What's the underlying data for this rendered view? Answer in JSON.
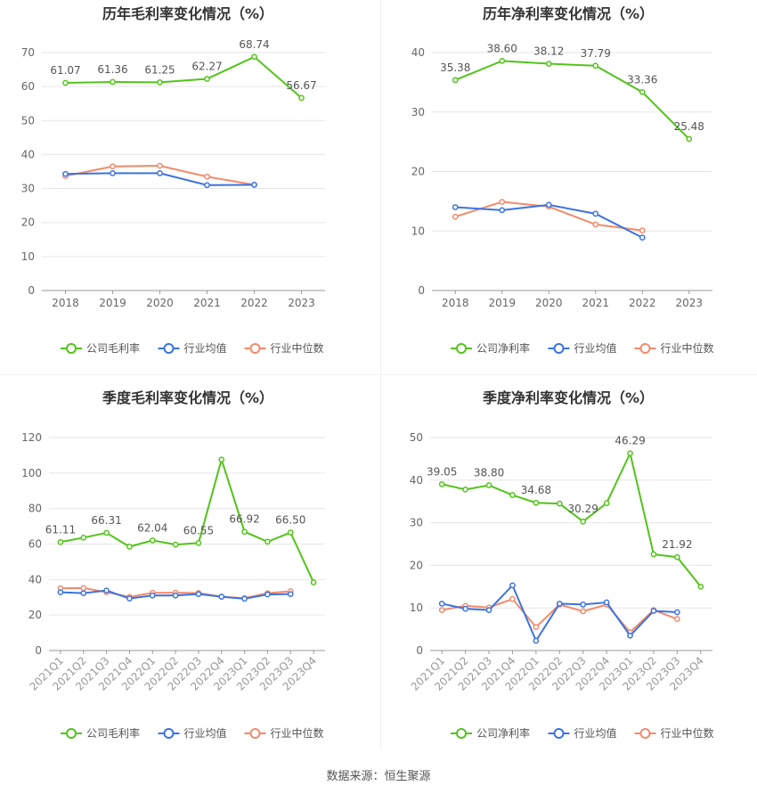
{
  "colors": {
    "company": "#52c41a",
    "industry_avg": "#3b73e0",
    "industry_median": "#f28b6b",
    "grid": "#e6e6e6",
    "axis": "#999999"
  },
  "source_label": "数据来源：恒生聚源",
  "chart_data": [
    {
      "type": "line",
      "title": "历年毛利率变化情况（%）",
      "categories": [
        "2018",
        "2019",
        "2020",
        "2021",
        "2022",
        "2023"
      ],
      "ylim": [
        0,
        70
      ],
      "yticks": [
        0,
        10,
        20,
        30,
        40,
        50,
        60,
        70
      ],
      "legend_position": "bottom",
      "series": [
        {
          "name": "公司毛利率",
          "values": [
            61.07,
            61.36,
            61.25,
            62.27,
            68.74,
            56.67
          ],
          "labels": [
            "61.07",
            "61.36",
            "61.25",
            "62.27",
            "68.74",
            "56.67"
          ]
        },
        {
          "name": "行业均值",
          "values": [
            34.3,
            34.5,
            34.5,
            31.0,
            31.1,
            null
          ]
        },
        {
          "name": "行业中位数",
          "values": [
            33.7,
            36.5,
            36.7,
            33.5,
            31.1,
            null
          ]
        }
      ]
    },
    {
      "type": "line",
      "title": "历年净利率变化情况（%）",
      "categories": [
        "2018",
        "2019",
        "2020",
        "2021",
        "2022",
        "2023"
      ],
      "ylim": [
        0,
        40
      ],
      "yticks": [
        0,
        10,
        20,
        30,
        40
      ],
      "legend_position": "bottom",
      "series": [
        {
          "name": "公司净利率",
          "values": [
            35.38,
            38.6,
            38.12,
            37.79,
            33.36,
            25.48
          ],
          "labels": [
            "35.38",
            "38.60",
            "38.12",
            "37.79",
            "33.36",
            "25.48"
          ]
        },
        {
          "name": "行业均值",
          "values": [
            14.0,
            13.5,
            14.4,
            12.9,
            8.9,
            null
          ]
        },
        {
          "name": "行业中位数",
          "values": [
            12.4,
            14.9,
            14.1,
            11.1,
            10.1,
            null
          ]
        }
      ]
    },
    {
      "type": "line",
      "title": "季度毛利率变化情况（%）",
      "categories": [
        "2021Q1",
        "2021Q2",
        "2021Q3",
        "2021Q4",
        "2022Q1",
        "2022Q2",
        "2022Q3",
        "2022Q4",
        "2023Q1",
        "2023Q2",
        "2023Q3",
        "2023Q4"
      ],
      "ylim": [
        0,
        120
      ],
      "yticks": [
        0,
        20,
        40,
        60,
        80,
        100,
        120
      ],
      "legend_position": "bottom",
      "series": [
        {
          "name": "公司毛利率",
          "values": [
            61.11,
            63.6,
            66.31,
            58.5,
            62.04,
            59.7,
            60.55,
            107.6,
            66.92,
            61.3,
            66.5,
            38.4
          ],
          "labels": [
            "61.11",
            "",
            "66.31",
            "",
            "62.04",
            "",
            "60.55",
            "",
            "66.92",
            "",
            "66.50",
            ""
          ]
        },
        {
          "name": "行业均值",
          "values": [
            32.8,
            32.3,
            33.8,
            29.3,
            31.0,
            31.0,
            31.8,
            30.3,
            29.2,
            31.6,
            31.8,
            null
          ]
        },
        {
          "name": "行业中位数",
          "values": [
            35.1,
            35.2,
            32.9,
            30.2,
            32.5,
            32.6,
            32.4,
            30.3,
            29.5,
            32.3,
            33.4,
            null
          ]
        }
      ]
    },
    {
      "type": "line",
      "title": "季度净利率变化情况（%）",
      "categories": [
        "2021Q1",
        "2021Q2",
        "2021Q3",
        "2021Q4",
        "2022Q1",
        "2022Q2",
        "2022Q3",
        "2022Q4",
        "2023Q1",
        "2023Q2",
        "2023Q3",
        "2023Q4"
      ],
      "ylim": [
        0,
        50
      ],
      "yticks": [
        0,
        10,
        20,
        30,
        40,
        50
      ],
      "legend_position": "bottom",
      "series": [
        {
          "name": "公司净利率",
          "values": [
            39.05,
            37.8,
            38.8,
            36.5,
            34.68,
            34.5,
            30.29,
            34.6,
            46.29,
            22.6,
            21.92,
            15.0
          ],
          "labels": [
            "39.05",
            "",
            "38.80",
            "",
            "34.68",
            "",
            "30.29",
            "",
            "46.29",
            "",
            "21.92",
            ""
          ]
        },
        {
          "name": "行业均值",
          "values": [
            11.0,
            9.8,
            9.5,
            15.3,
            2.3,
            11.0,
            10.8,
            11.3,
            3.5,
            9.3,
            9.0,
            null
          ]
        },
        {
          "name": "行业中位数",
          "values": [
            9.5,
            10.5,
            10.1,
            12.1,
            5.5,
            10.8,
            9.2,
            10.8,
            4.3,
            9.5,
            7.4,
            null
          ]
        }
      ]
    }
  ]
}
